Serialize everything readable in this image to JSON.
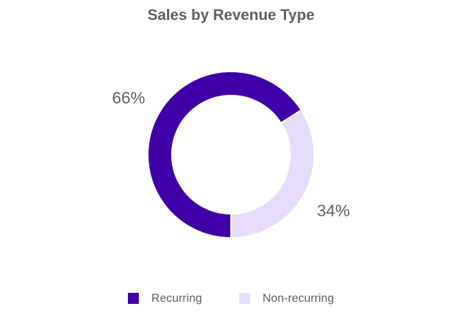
{
  "chart_data": {
    "type": "pie",
    "title": "Sales by Revenue Type",
    "style": "donut",
    "slices": [
      {
        "name": "Recurring",
        "value": 66,
        "label": "66%",
        "color": "#3f00a8"
      },
      {
        "name": "Non-recurring",
        "value": 34,
        "label": "34%",
        "color": "#e6ddfc"
      }
    ],
    "legend_position": "bottom"
  }
}
